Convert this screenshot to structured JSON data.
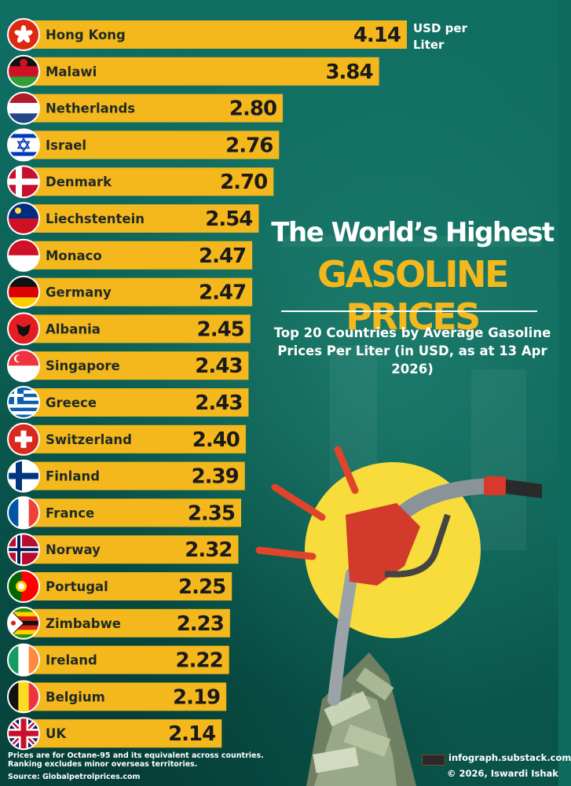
{
  "unit_label": "USD per Liter",
  "title_line1": "The World’s Highest",
  "title_line2": "GASOLINE PRICES",
  "subtitle": "Top 20 Countries by Average Gasoline Prices Per Liter (in USD, as at 13 Apr 2026)",
  "footnote": "Prices are for Octane-95 and its equivalent across countries. Ranking excludes minor overseas territories.",
  "source": "Source: Globalpetrolprices.com",
  "brand_site": "infograph.substack.com",
  "copyright": "© 2026, Iswardi Ishak",
  "colors": {
    "bar": "#f5b81c",
    "background": "#0e6a5e",
    "accent": "#f5b81c",
    "text": "#ffffff"
  },
  "chart_data": {
    "type": "bar",
    "orientation": "horizontal",
    "categories": [
      "Hong Kong",
      "Malawi",
      "Netherlands",
      "Israel",
      "Denmark",
      "Liechstentein",
      "Monaco",
      "Germany",
      "Albania",
      "Singapore",
      "Greece",
      "Switzerland",
      "Finland",
      "France",
      "Norway",
      "Portugal",
      "Zimbabwe",
      "Ireland",
      "Belgium",
      "UK"
    ],
    "values": [
      4.14,
      3.84,
      2.8,
      2.76,
      2.7,
      2.54,
      2.47,
      2.47,
      2.45,
      2.43,
      2.43,
      2.4,
      2.39,
      2.35,
      2.32,
      2.25,
      2.23,
      2.22,
      2.19,
      2.14
    ],
    "value_labels": [
      "4.14",
      "3.84",
      "2.80",
      "2.76",
      "2.70",
      "2.54",
      "2.47",
      "2.47",
      "2.45",
      "2.43",
      "2.43",
      "2.40",
      "2.39",
      "2.35",
      "2.32",
      "2.25",
      "2.23",
      "2.22",
      "2.19",
      "2.14"
    ],
    "flags": [
      "hong-kong-flag-icon",
      "malawi-flag-icon",
      "netherlands-flag-icon",
      "israel-flag-icon",
      "denmark-flag-icon",
      "liechtenstein-flag-icon",
      "monaco-flag-icon",
      "germany-flag-icon",
      "albania-flag-icon",
      "singapore-flag-icon",
      "greece-flag-icon",
      "switzerland-flag-icon",
      "finland-flag-icon",
      "france-flag-icon",
      "norway-flag-icon",
      "portugal-flag-icon",
      "zimbabwe-flag-icon",
      "ireland-flag-icon",
      "belgium-flag-icon",
      "uk-flag-icon"
    ],
    "unit": "USD per Liter",
    "title": "The World’s Highest GASOLINE PRICES",
    "subtitle": "Top 20 Countries by Average Gasoline Prices Per Liter (in USD, as at 13 Apr 2026)",
    "xlabel": "",
    "ylabel": "",
    "grid": false,
    "legend": "none"
  }
}
